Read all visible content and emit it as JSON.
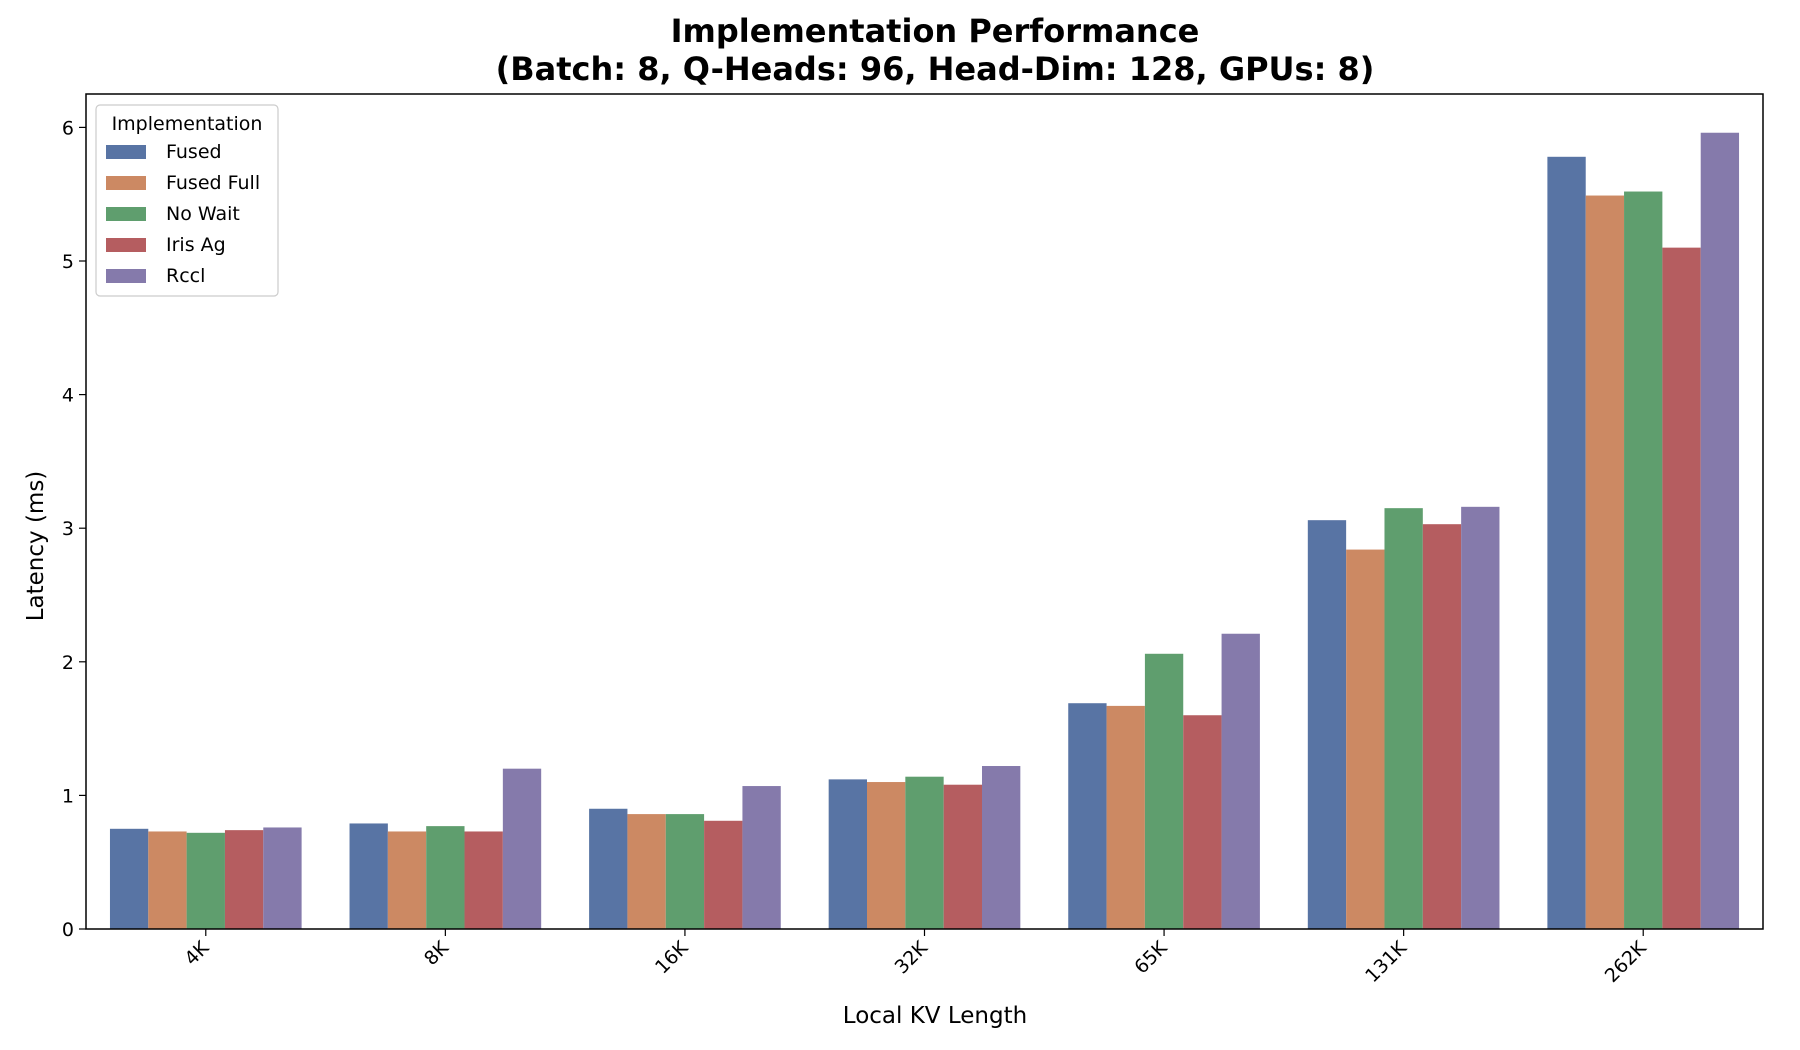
{
  "chart_data": {
    "type": "bar",
    "title": "Implementation Performance",
    "subtitle": "(Batch: 8, Q-Heads: 96, Head-Dim: 128, GPUs: 8)",
    "xlabel": "Local KV Length",
    "ylabel": "Latency (ms)",
    "ylim": [
      0,
      6.25
    ],
    "yticks": [
      0,
      1,
      2,
      3,
      4,
      5,
      6
    ],
    "grid": false,
    "legend": {
      "title": "Implementation",
      "placement": "top-left"
    },
    "categories": [
      "4K",
      "8K",
      "16K",
      "32K",
      "65K",
      "131K",
      "262K"
    ],
    "series": [
      {
        "name": "Fused",
        "color": "#5874a4",
        "values": [
          0.75,
          0.79,
          0.9,
          1.12,
          1.69,
          3.06,
          5.78
        ]
      },
      {
        "name": "Fused Full",
        "color": "#cc8963",
        "values": [
          0.73,
          0.73,
          0.86,
          1.1,
          1.67,
          2.84,
          5.49
        ]
      },
      {
        "name": "No Wait",
        "color": "#5f9e6e",
        "values": [
          0.72,
          0.77,
          0.86,
          1.14,
          2.06,
          3.15,
          5.52
        ]
      },
      {
        "name": "Iris Ag",
        "color": "#b55d60",
        "values": [
          0.74,
          0.73,
          0.81,
          1.08,
          1.6,
          3.03,
          5.1
        ]
      },
      {
        "name": "Rccl",
        "color": "#857aab",
        "values": [
          0.76,
          1.2,
          1.07,
          1.22,
          2.21,
          3.16,
          5.96
        ]
      }
    ]
  }
}
